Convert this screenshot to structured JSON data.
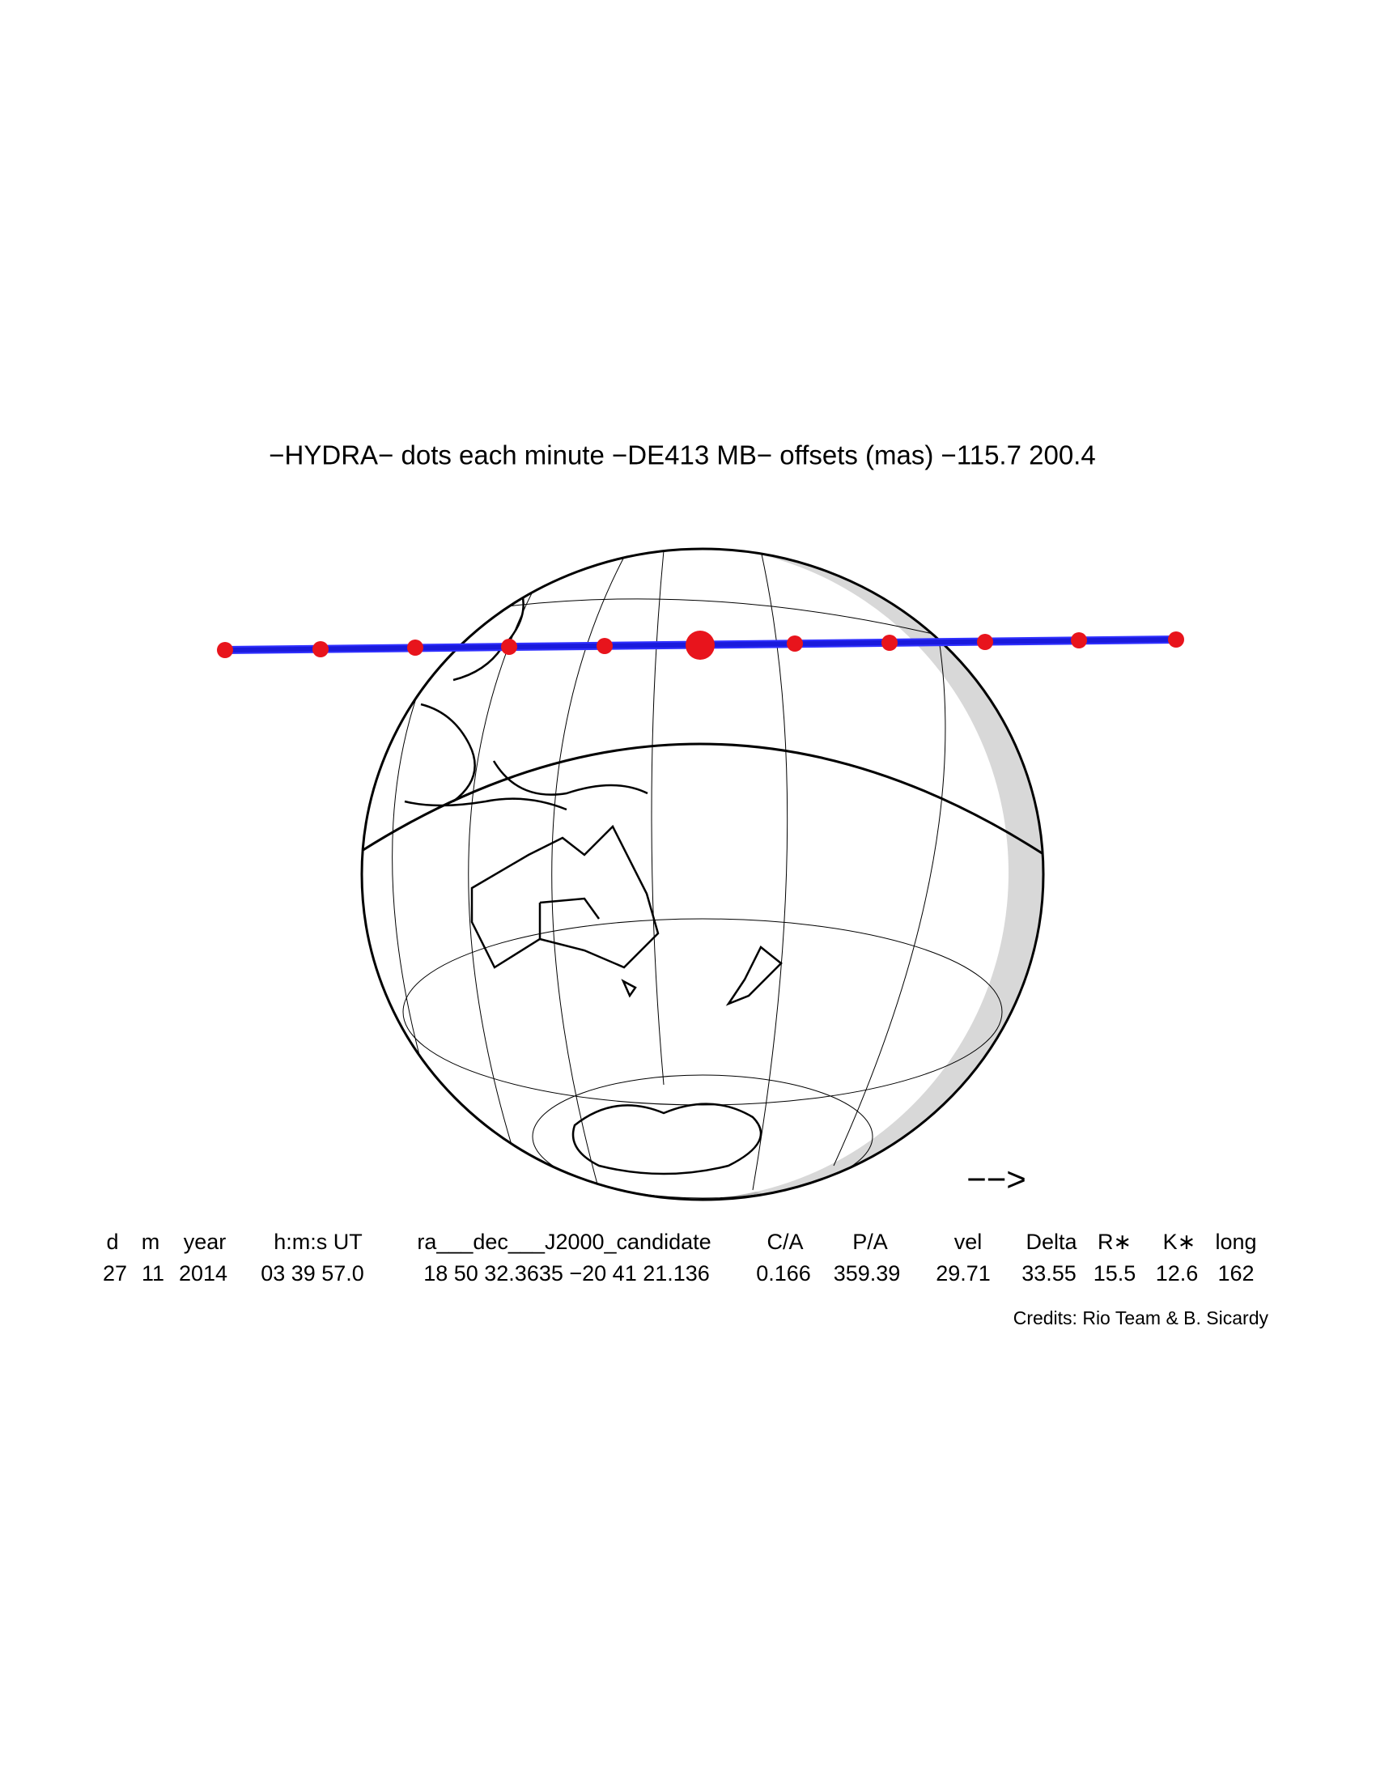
{
  "title": "−HYDRA− dots each minute −DE413 MB− offsets (mas) −115.7   200.4",
  "direction_arrow": "−−>",
  "table": {
    "headers": [
      "d",
      "m",
      "year",
      "h:m:s UT",
      "ra___dec___J2000_candidate",
      "C/A",
      "P/A",
      "vel",
      "Delta",
      "R∗",
      "K∗",
      "long"
    ],
    "rows": [
      [
        "27",
        "11",
        "2014",
        "03 39 57.0",
        "18 50 32.3635 −20 41 21.136",
        "0.166",
        "359.39",
        "29.71",
        "33.55",
        "15.5",
        "12.6",
        "162"
      ]
    ]
  },
  "credits": "Credits: Rio Team & B. Sicardy"
}
